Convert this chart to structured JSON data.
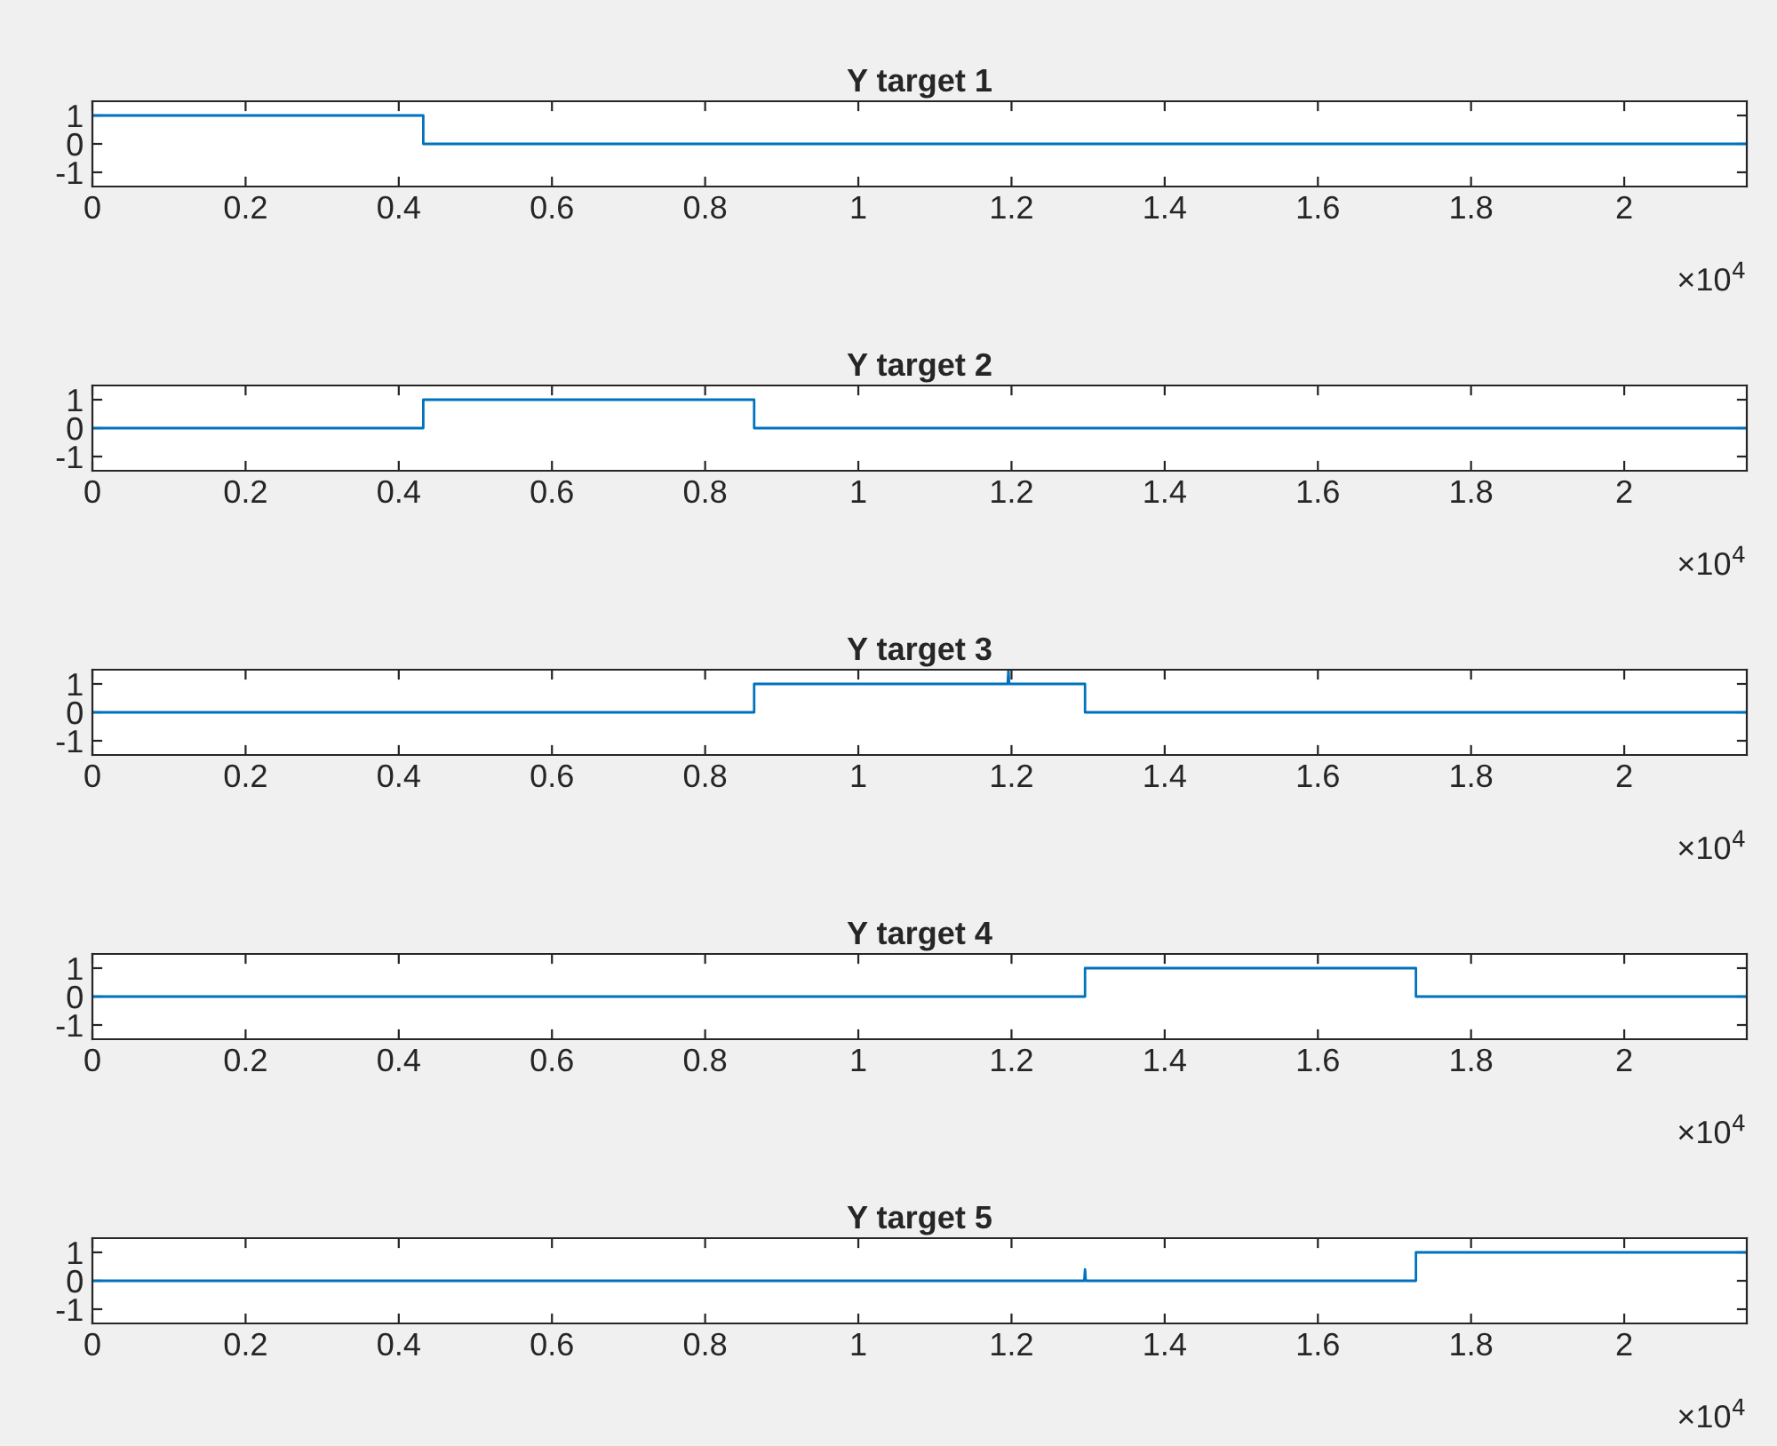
{
  "chart_data": [
    {
      "type": "line",
      "title": "Y target 1",
      "x": [
        0,
        0.432,
        0.432,
        2.16
      ],
      "series": [
        {
          "color": "#0072bd",
          "values": [
            1,
            1,
            0,
            0
          ]
        }
      ],
      "xlim": [
        0,
        2.16
      ],
      "ylim": [
        -1.5,
        1.5
      ],
      "yticks": [
        -1,
        0,
        1
      ],
      "xticks": [
        0,
        0.2,
        0.4,
        0.6,
        0.8,
        1,
        1.2,
        1.4,
        1.6,
        1.8,
        2
      ],
      "annotations": [
        "×10$^{4}$"
      ],
      "grid": false,
      "legend": false
    },
    {
      "type": "line",
      "title": "Y target 2",
      "x": [
        0,
        0.432,
        0.432,
        0.864,
        0.864,
        2.16
      ],
      "series": [
        {
          "color": "#0072bd",
          "values": [
            0,
            0,
            1,
            1,
            0,
            0
          ]
        }
      ],
      "xlim": [
        0,
        2.16
      ],
      "ylim": [
        -1.5,
        1.5
      ],
      "yticks": [
        -1,
        0,
        1
      ],
      "xticks": [
        0,
        0.2,
        0.4,
        0.6,
        0.8,
        1,
        1.2,
        1.4,
        1.6,
        1.8,
        2
      ],
      "annotations": [
        "×10$^{4}$"
      ],
      "grid": false,
      "legend": false
    },
    {
      "type": "line",
      "title": "Y target 3",
      "x": [
        0,
        0.864,
        0.864,
        1.195,
        1.196,
        1.197,
        1.296,
        1.296,
        2.16
      ],
      "series": [
        {
          "color": "#0072bd",
          "values": [
            0,
            0,
            1,
            1,
            1.5,
            1,
            1,
            0,
            0
          ]
        }
      ],
      "xlim": [
        0,
        2.16
      ],
      "ylim": [
        -1.5,
        1.5
      ],
      "yticks": [
        -1,
        0,
        1
      ],
      "xticks": [
        0,
        0.2,
        0.4,
        0.6,
        0.8,
        1,
        1.2,
        1.4,
        1.6,
        1.8,
        2
      ],
      "annotations": [
        "×10$^{4}$"
      ],
      "grid": false,
      "legend": false
    },
    {
      "type": "line",
      "title": "Y target 4",
      "x": [
        0,
        1.296,
        1.296,
        1.728,
        1.728,
        2.16
      ],
      "series": [
        {
          "color": "#0072bd",
          "values": [
            0,
            0,
            1,
            1,
            0,
            0
          ]
        }
      ],
      "xlim": [
        0,
        2.16
      ],
      "ylim": [
        -1.5,
        1.5
      ],
      "yticks": [
        -1,
        0,
        1
      ],
      "xticks": [
        0,
        0.2,
        0.4,
        0.6,
        0.8,
        1,
        1.2,
        1.4,
        1.6,
        1.8,
        2
      ],
      "annotations": [
        "×10$^{4}$"
      ],
      "grid": false,
      "legend": false
    },
    {
      "type": "line",
      "title": "Y target 5",
      "x": [
        0,
        1.295,
        1.296,
        1.297,
        1.728,
        1.728,
        2.16
      ],
      "series": [
        {
          "color": "#0072bd",
          "values": [
            0,
            0,
            0.4,
            0,
            0,
            1,
            1
          ]
        }
      ],
      "xlim": [
        0,
        2.16
      ],
      "ylim": [
        -1.5,
        1.5
      ],
      "yticks": [
        -1,
        0,
        1
      ],
      "xticks": [
        0,
        0.2,
        0.4,
        0.6,
        0.8,
        1,
        1.2,
        1.4,
        1.6,
        1.8,
        2
      ],
      "annotations": [
        "×10$^{4}$"
      ],
      "grid": false,
      "legend": false
    }
  ]
}
